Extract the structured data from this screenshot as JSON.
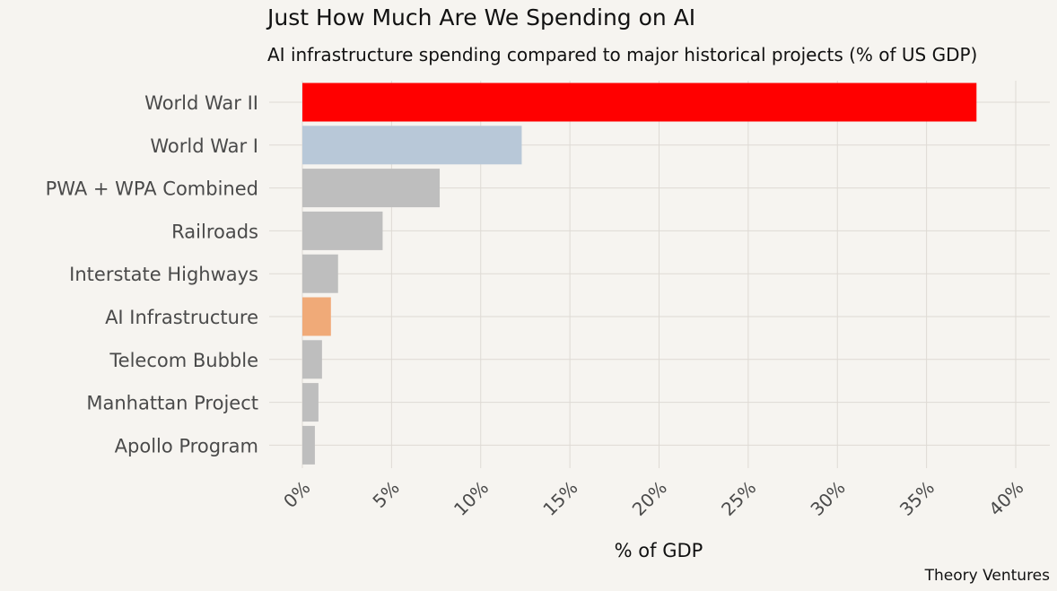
{
  "chart_data": {
    "type": "bar",
    "orientation": "horizontal",
    "title": "Just How Much Are We Spending on AI",
    "subtitle": "AI infrastructure spending compared to major historical projects (% of US GDP)",
    "xlabel": "% of GDP",
    "ylabel": "",
    "xlim": [
      0,
      40
    ],
    "x_ticks": [
      0,
      5,
      10,
      15,
      20,
      25,
      30,
      35,
      40
    ],
    "x_tick_labels": [
      "0%",
      "5%",
      "10%",
      "15%",
      "20%",
      "25%",
      "30%",
      "35%",
      "40%"
    ],
    "grid": true,
    "categories": [
      "World War II",
      "World War I",
      "PWA + WPA Combined",
      "Railroads",
      "Interstate Highways",
      "AI Infrastructure",
      "Telecom Bubble",
      "Manhattan Project",
      "Apollo Program"
    ],
    "values": [
      37.8,
      12.3,
      7.7,
      4.5,
      2.0,
      1.6,
      1.1,
      0.9,
      0.7
    ],
    "bar_colors": [
      "#ff0000",
      "#b8c8d8",
      "#bebebe",
      "#bebebe",
      "#bebebe",
      "#f0aa78",
      "#bebebe",
      "#bebebe",
      "#bebebe"
    ],
    "source": "Theory Ventures"
  },
  "colors": {
    "background": "#f6f4f0",
    "grid": "#dedad4",
    "title_text": "#111111",
    "label_text": "#4a4a4a"
  }
}
